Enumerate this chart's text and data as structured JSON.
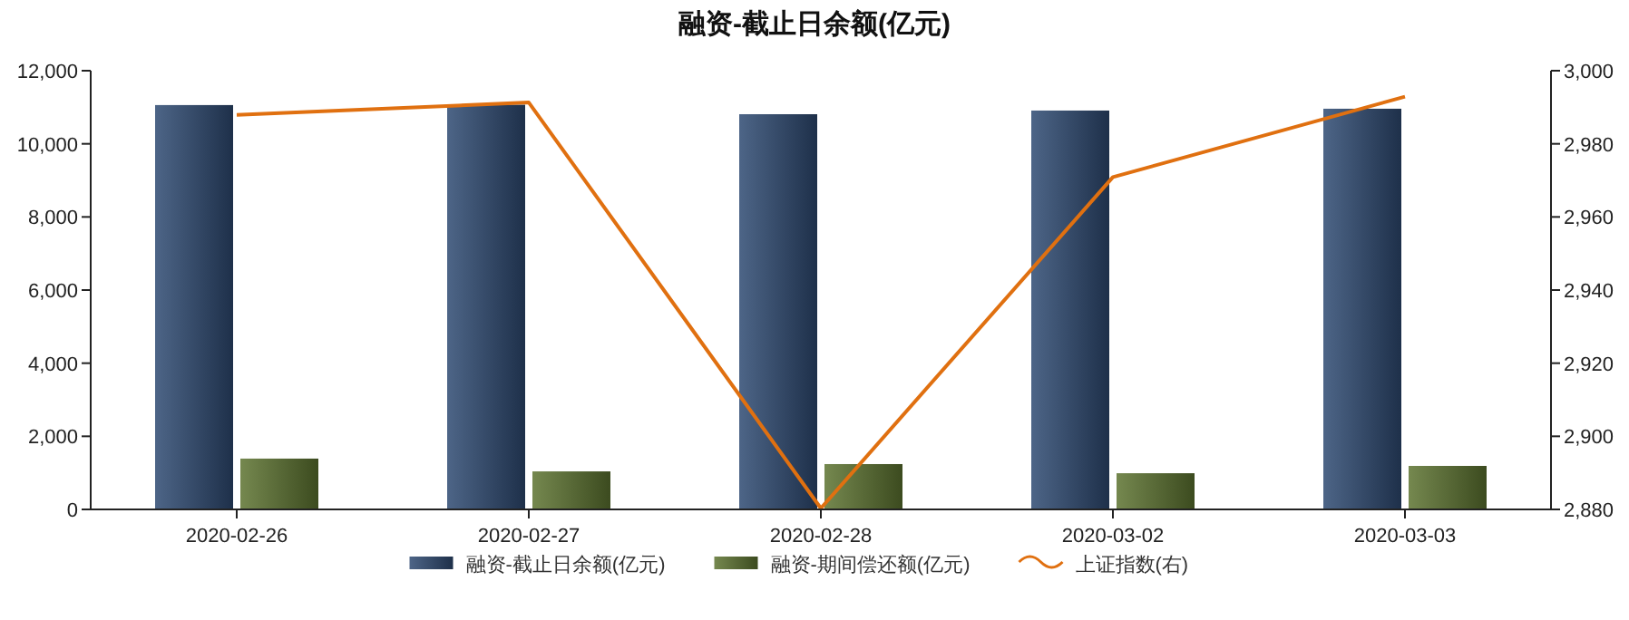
{
  "chart_data": {
    "type": "bar",
    "title": "融资-截止日余额(亿元)",
    "categories": [
      "2020-02-26",
      "2020-02-27",
      "2020-02-28",
      "2020-03-02",
      "2020-03-03"
    ],
    "series": [
      {
        "name": "融资-截止日余额(亿元)",
        "color": "#2e4a72",
        "values": [
          11060,
          11070,
          10810,
          10910,
          10960
        ]
      },
      {
        "name": "融资-期间偿还额(亿元)",
        "color": "#5d7330",
        "values": [
          1390,
          1040,
          1240,
          990,
          1190
        ]
      },
      {
        "name": "上证指数(右)",
        "type": "line",
        "axis": "y2",
        "color": "#e07010",
        "values": [
          2987.9,
          2991.3,
          2880.3,
          2970.9,
          2992.9
        ]
      }
    ],
    "ylim": [
      0,
      12000
    ],
    "yticks": [
      {
        "value": 0,
        "label": "0"
      },
      {
        "value": 2000,
        "label": "2,000"
      },
      {
        "value": 4000,
        "label": "4,000"
      },
      {
        "value": 6000,
        "label": "6,000"
      },
      {
        "value": 8000,
        "label": "8,000"
      },
      {
        "value": 10000,
        "label": "10,000"
      },
      {
        "value": 12000,
        "label": "12,000"
      }
    ],
    "y2lim": [
      2880,
      3000
    ],
    "y2ticks": [
      {
        "value": 2880,
        "label": "2,880"
      },
      {
        "value": 2900,
        "label": "2,900"
      },
      {
        "value": 2920,
        "label": "2,920"
      },
      {
        "value": 2940,
        "label": "2,940"
      },
      {
        "value": 2960,
        "label": "2,960"
      },
      {
        "value": 2980,
        "label": "2,980"
      },
      {
        "value": 3000,
        "label": "3,000"
      }
    ],
    "grid": false,
    "legend": "bottom",
    "marker": "none"
  }
}
